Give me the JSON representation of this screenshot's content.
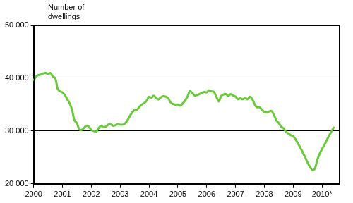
{
  "chart_data": {
    "type": "line",
    "y_label": "Number of dwellings",
    "categories": [
      "2000",
      null,
      null,
      null,
      null,
      null,
      null,
      null,
      null,
      null,
      null,
      null,
      "2001",
      null,
      null,
      null,
      null,
      null,
      null,
      null,
      null,
      null,
      null,
      null,
      "2002",
      null,
      null,
      null,
      null,
      null,
      null,
      null,
      null,
      null,
      null,
      null,
      "2003",
      null,
      null,
      null,
      null,
      null,
      null,
      null,
      null,
      null,
      null,
      null,
      "2004",
      null,
      null,
      null,
      null,
      null,
      null,
      null,
      null,
      null,
      null,
      null,
      "2005",
      null,
      null,
      null,
      null,
      null,
      null,
      null,
      null,
      null,
      null,
      null,
      "2006",
      null,
      null,
      null,
      null,
      null,
      null,
      null,
      null,
      null,
      null,
      null,
      "2007",
      null,
      null,
      null,
      null,
      null,
      null,
      null,
      null,
      null,
      null,
      null,
      "2008",
      null,
      null,
      null,
      null,
      null,
      null,
      null,
      null,
      null,
      null,
      null,
      "2009",
      null,
      null,
      null,
      null,
      null,
      null,
      null,
      null,
      null,
      null,
      null,
      "2010*",
      null,
      null,
      null,
      null,
      null,
      null,
      null
    ],
    "values": [
      39500,
      40300,
      40600,
      40700,
      40900,
      41000,
      40800,
      41000,
      40300,
      40000,
      38000,
      37500,
      37300,
      36800,
      36000,
      35200,
      34000,
      32000,
      31500,
      30300,
      30200,
      30600,
      31000,
      30800,
      30200,
      30000,
      29900,
      30500,
      31000,
      30700,
      30800,
      31200,
      31300,
      31000,
      31100,
      31300,
      31200,
      31200,
      31400,
      32000,
      32800,
      33500,
      34000,
      34000,
      34600,
      35000,
      35300,
      35700,
      36500,
      36300,
      36700,
      36200,
      36000,
      36400,
      36600,
      36500,
      36200,
      35400,
      35100,
      35000,
      35000,
      34800,
      35200,
      35800,
      36500,
      37600,
      37200,
      36700,
      36800,
      37000,
      37200,
      37400,
      37300,
      37700,
      37500,
      37400,
      36500,
      35600,
      36600,
      36900,
      37000,
      36600,
      37000,
      36700,
      36500,
      36000,
      36200,
      36000,
      36300,
      36000,
      36500,
      36000,
      35000,
      34500,
      34500,
      34000,
      33600,
      33500,
      33700,
      33800,
      33000,
      32000,
      31500,
      30800,
      30500,
      29800,
      29500,
      29200,
      29000,
      28400,
      27600,
      26800,
      25900,
      25000,
      24000,
      23200,
      22600,
      22900,
      24500,
      25700,
      26600,
      27400,
      28300,
      29200,
      30000,
      30800,
      null,
      null
    ],
    "color": "#66cc33",
    "ylim": [
      20000,
      50000
    ],
    "yticks": [
      {
        "value": 20000,
        "label": "20 000"
      },
      {
        "value": 30000,
        "label": "30 000"
      },
      {
        "value": 40000,
        "label": "40 000"
      },
      {
        "value": 50000,
        "label": "50 000"
      }
    ],
    "grid": true
  }
}
